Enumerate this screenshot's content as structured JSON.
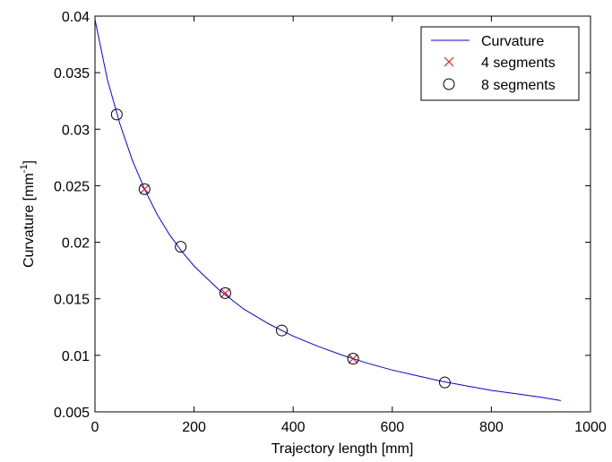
{
  "chart_data": {
    "type": "line",
    "title": "",
    "xlabel": "Trajectory length [mm]",
    "ylabel_main": "Curvature [mm",
    "ylabel_sup": "-1",
    "ylabel_end": "]",
    "xlim": [
      0,
      1000
    ],
    "ylim": [
      0.005,
      0.04
    ],
    "x_ticks": [
      0,
      200,
      400,
      600,
      800,
      1000
    ],
    "x_tick_labels": [
      "0",
      "200",
      "400",
      "600",
      "800",
      "1000"
    ],
    "y_ticks": [
      0.005,
      0.01,
      0.015,
      0.02,
      0.025,
      0.03,
      0.035,
      0.04
    ],
    "y_tick_labels": [
      "0.005",
      "0.01",
      "0.015",
      "0.02",
      "0.025",
      "0.03",
      "0.035",
      "0.04"
    ],
    "grid": false,
    "legend_position": "top-right",
    "series": [
      {
        "name": "Curvature",
        "style": "line",
        "color": "#0000ff",
        "x": [
          0,
          25,
          50,
          75,
          100,
          125,
          150,
          175,
          200,
          250,
          300,
          350,
          400,
          450,
          500,
          550,
          600,
          650,
          700,
          750,
          800,
          850,
          900,
          940
        ],
        "y": [
          0.0397,
          0.0344,
          0.0305,
          0.0273,
          0.0247,
          0.0225,
          0.0207,
          0.0192,
          0.0179,
          0.0158,
          0.0141,
          0.0128,
          0.0117,
          0.0108,
          0.01,
          0.0093,
          0.0087,
          0.0082,
          0.0077,
          0.0073,
          0.0069,
          0.0066,
          0.0063,
          0.006
        ]
      },
      {
        "name": "4 segments",
        "style": "x-marker",
        "color": "#ff0000",
        "x": [
          100,
          263,
          521
        ],
        "y": [
          0.0247,
          0.0155,
          0.0097
        ]
      },
      {
        "name": "8 segments",
        "style": "circle-marker",
        "color": "#000000",
        "x": [
          44,
          100,
          173,
          263,
          377,
          521,
          706
        ],
        "y": [
          0.0313,
          0.0247,
          0.0196,
          0.0155,
          0.0122,
          0.0097,
          0.0076
        ]
      }
    ]
  }
}
